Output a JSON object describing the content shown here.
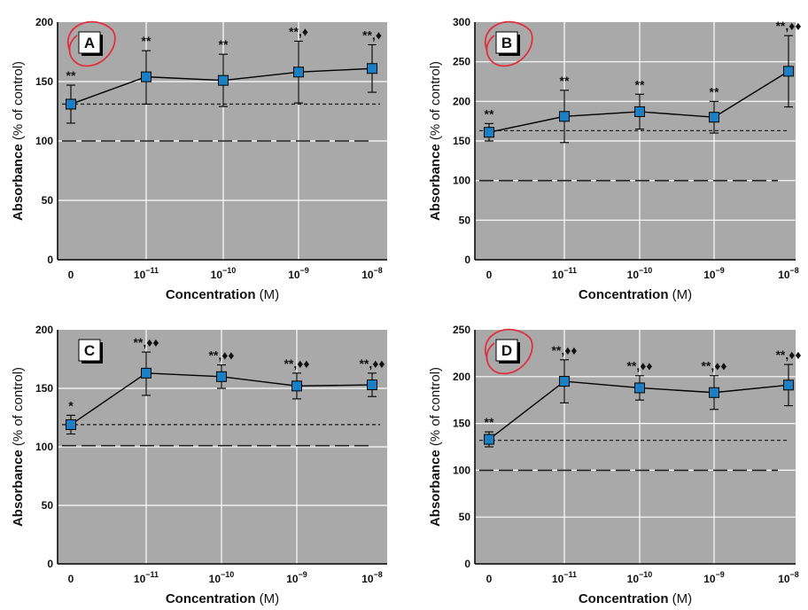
{
  "figure": {
    "x_categories": [
      "0",
      "10",
      "10",
      "10",
      "10"
    ],
    "x_superscripts": [
      "",
      "−11",
      "−10",
      "−9",
      "−8"
    ],
    "xlabel_bold": "Concentration",
    "xlabel_unit": "(M)",
    "ylabel_bold": "Absorbance",
    "ylabel_unit": "(% of control)"
  },
  "colors": {
    "plot_background": "#a9a9a9",
    "grid": "#ffffff",
    "marker": "#1b7fc4",
    "line": "#000000",
    "circle": "#e03040"
  },
  "chart_data": [
    {
      "type": "line",
      "panel_label": "A",
      "ylim": [
        0,
        200
      ],
      "yticks": [
        0,
        50,
        100,
        150,
        200
      ],
      "categories": [
        "0",
        "10^-11",
        "10^-10",
        "10^-9",
        "10^-8"
      ],
      "values": [
        131,
        154,
        151,
        158,
        161
      ],
      "error_low": [
        115,
        131,
        129,
        132,
        141
      ],
      "error_high": [
        147,
        176,
        173,
        184,
        181
      ],
      "annotations": [
        "**",
        "**",
        "**",
        "**,♦",
        "**,♦"
      ],
      "reference_dotted": 131,
      "reference_dashed": 100,
      "circled_label": true
    },
    {
      "type": "line",
      "panel_label": "B",
      "ylim": [
        0,
        300
      ],
      "yticks": [
        0,
        50,
        100,
        150,
        200,
        250,
        300
      ],
      "categories": [
        "0",
        "10^-11",
        "10^-10",
        "10^-9",
        "10^-8"
      ],
      "values": [
        161,
        181,
        187,
        180,
        238
      ],
      "error_low": [
        150,
        148,
        165,
        160,
        193
      ],
      "error_high": [
        172,
        214,
        209,
        200,
        283
      ],
      "annotations": [
        "**",
        "**",
        "**",
        "**",
        "**,♦♦"
      ],
      "reference_dotted": 163,
      "reference_dashed": 100,
      "circled_label": true
    },
    {
      "type": "line",
      "panel_label": "C",
      "ylim": [
        0,
        200
      ],
      "yticks": [
        0,
        50,
        100,
        150,
        200
      ],
      "categories": [
        "0",
        "10^-11",
        "10^-10",
        "10^-9",
        "10^-8"
      ],
      "values": [
        119,
        163,
        160,
        152,
        153
      ],
      "error_low": [
        111,
        144,
        150,
        141,
        143
      ],
      "error_high": [
        127,
        181,
        170,
        163,
        163
      ],
      "annotations": [
        "*",
        "**,♦♦",
        "**,♦♦",
        "**,♦♦",
        "**,♦♦"
      ],
      "reference_dotted": 119,
      "reference_dashed": 101,
      "circled_label": false
    },
    {
      "type": "line",
      "panel_label": "D",
      "ylim": [
        0,
        250
      ],
      "yticks": [
        0,
        50,
        100,
        150,
        200,
        250
      ],
      "categories": [
        "0",
        "10^-11",
        "10^-10",
        "10^-9",
        "10^-8"
      ],
      "values": [
        133,
        195,
        188,
        183,
        191
      ],
      "error_low": [
        125,
        172,
        175,
        165,
        169
      ],
      "error_high": [
        141,
        218,
        201,
        201,
        213
      ],
      "annotations": [
        "**",
        "**,♦♦",
        "**,♦♦",
        "**,♦♦",
        "**,♦♦"
      ],
      "reference_dotted": 132,
      "reference_dashed": 100,
      "circled_label": true
    }
  ]
}
